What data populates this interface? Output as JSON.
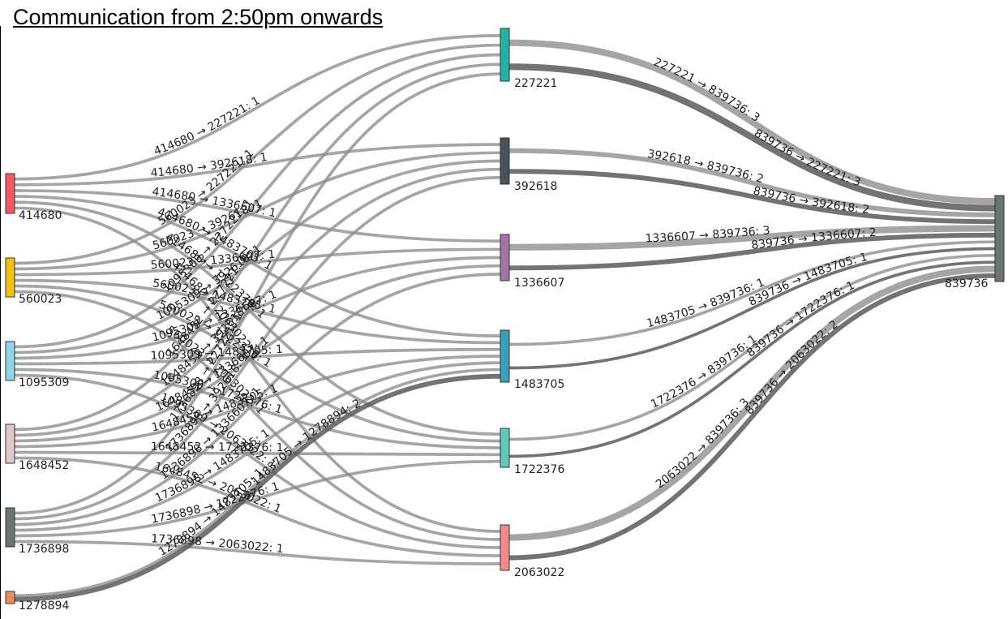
{
  "title": "Communication from 2:50pm onwards",
  "diagram": {
    "type": "sankey",
    "nodes": [
      {
        "id": "414680",
        "color": "#f5595f"
      },
      {
        "id": "560023",
        "color": "#f0c20f"
      },
      {
        "id": "1095309",
        "color": "#8fd3ea"
      },
      {
        "id": "1648452",
        "color": "#dfc7c7"
      },
      {
        "id": "1736898",
        "color": "#6b7472"
      },
      {
        "id": "1278894",
        "color": "#f08a5c"
      },
      {
        "id": "227221",
        "color": "#1eb5a5"
      },
      {
        "id": "392618",
        "color": "#48525a"
      },
      {
        "id": "1336607",
        "color": "#a374a8"
      },
      {
        "id": "1483705",
        "color": "#3a9fbd"
      },
      {
        "id": "1722376",
        "color": "#5ec9bd"
      },
      {
        "id": "2063022",
        "color": "#f5898a"
      },
      {
        "id": "839736",
        "color": "#6b7472"
      }
    ],
    "links": [
      {
        "source": "414680",
        "target": "227221",
        "value": 1,
        "label": "414680 → 227221: 1"
      },
      {
        "source": "414680",
        "target": "392618",
        "value": 1,
        "label": "414680 → 392618: 1"
      },
      {
        "source": "414680",
        "target": "1336607",
        "value": 1,
        "label": "414680 → 1336607: 1"
      },
      {
        "source": "414680",
        "target": "1483705",
        "value": 1,
        "label": "414680 → 1483705: 1"
      },
      {
        "source": "414680",
        "target": "1722376",
        "value": 1,
        "label": "414680 → 1722376: 1"
      },
      {
        "source": "414680",
        "target": "2063022",
        "value": 1,
        "label": "414680 → 2063022: 1"
      },
      {
        "source": "560023",
        "target": "227221",
        "value": 1,
        "label": "560023 → 227221: 1"
      },
      {
        "source": "560023",
        "target": "392618",
        "value": 1,
        "label": "560023 → 392618: 1"
      },
      {
        "source": "560023",
        "target": "1336607",
        "value": 1,
        "label": "560023 → 1336607: 1"
      },
      {
        "source": "560023",
        "target": "1483705",
        "value": 1,
        "label": "560023 → 1483705: 1"
      },
      {
        "source": "560023",
        "target": "1722376",
        "value": 1,
        "label": "560023 → 1722376: 1"
      },
      {
        "source": "560023",
        "target": "2063022",
        "value": 1,
        "label": "560023 → 2063022: 1"
      },
      {
        "source": "1095309",
        "target": "227221",
        "value": 1,
        "label": "1095309 → 227221: 1"
      },
      {
        "source": "1095309",
        "target": "392618",
        "value": 1,
        "label": "1095309 → 392618: 1"
      },
      {
        "source": "1095309",
        "target": "1336607",
        "value": 1,
        "label": "1095309 → 1336607: 1"
      },
      {
        "source": "1095309",
        "target": "1483705",
        "value": 1,
        "label": "1095309 → 1483705: 1"
      },
      {
        "source": "1095309",
        "target": "1722376",
        "value": 1,
        "label": "1095309 → 1722376: 1"
      },
      {
        "source": "1095309",
        "target": "2063022",
        "value": 1,
        "label": "1095309 → 2063022: 1"
      },
      {
        "source": "1648452",
        "target": "227221",
        "value": 1,
        "label": "1648452 → 227221: 1"
      },
      {
        "source": "1648452",
        "target": "392618",
        "value": 1,
        "label": "1648452 → 392618: 1"
      },
      {
        "source": "1648452",
        "target": "1336607",
        "value": 1,
        "label": "1648452 → 1336607: 1"
      },
      {
        "source": "1648452",
        "target": "1483705",
        "value": 1,
        "label": "1648452 → 1483705: 1"
      },
      {
        "source": "1648452",
        "target": "1722376",
        "value": 1,
        "label": "1648452 → 1722376: 1"
      },
      {
        "source": "1648452",
        "target": "2063022",
        "value": 1,
        "label": "1648452 → 2063022: 1"
      },
      {
        "source": "1736898",
        "target": "227221",
        "value": 1,
        "label": "1736898 → 227221: 1"
      },
      {
        "source": "1736898",
        "target": "392618",
        "value": 1,
        "label": "1736898 → 392618: 1"
      },
      {
        "source": "1736898",
        "target": "1336607",
        "value": 1,
        "label": "1736898 → 1336607: 1"
      },
      {
        "source": "1736898",
        "target": "1483705",
        "value": 1,
        "label": "1736898 → 1483705: 1"
      },
      {
        "source": "1736898",
        "target": "1722376",
        "value": 1,
        "label": "1736898 → 1722376: 1"
      },
      {
        "source": "1736898",
        "target": "2063022",
        "value": 1,
        "label": "1736898 → 2063022: 1"
      },
      {
        "source": "1278894",
        "target": "1483705",
        "value": 1,
        "label": "1278894 → 1483705: 1"
      },
      {
        "source": "1483705",
        "target": "1278894",
        "value": 2,
        "label": "1483705 → 1278894: 2"
      },
      {
        "source": "227221",
        "target": "839736",
        "value": 3,
        "label": "227221 → 839736: 3"
      },
      {
        "source": "839736",
        "target": "227221",
        "value": 3,
        "label": "839736 → 227221: 3"
      },
      {
        "source": "392618",
        "target": "839736",
        "value": 2,
        "label": "392618 → 839736: 2"
      },
      {
        "source": "839736",
        "target": "392618",
        "value": 2,
        "label": "839736 → 392618: 2"
      },
      {
        "source": "1336607",
        "target": "839736",
        "value": 3,
        "label": "1336607 → 839736: 3"
      },
      {
        "source": "839736",
        "target": "1336607",
        "value": 2,
        "label": "839736 → 1336607: 2"
      },
      {
        "source": "1483705",
        "target": "839736",
        "value": 1,
        "label": "1483705 → 839736: 1"
      },
      {
        "source": "839736",
        "target": "1483705",
        "value": 1,
        "label": "839736 → 1483705: 1"
      },
      {
        "source": "1722376",
        "target": "839736",
        "value": 1,
        "label": "1722376 → 839736: 1"
      },
      {
        "source": "839736",
        "target": "1722376",
        "value": 1,
        "label": "839736 → 1722376: 1"
      },
      {
        "source": "2063022",
        "target": "839736",
        "value": 3,
        "label": "2063022 → 839736: 3"
      },
      {
        "source": "839736",
        "target": "2063022",
        "value": 2,
        "label": "839736 → 2063022: 2"
      }
    ]
  }
}
